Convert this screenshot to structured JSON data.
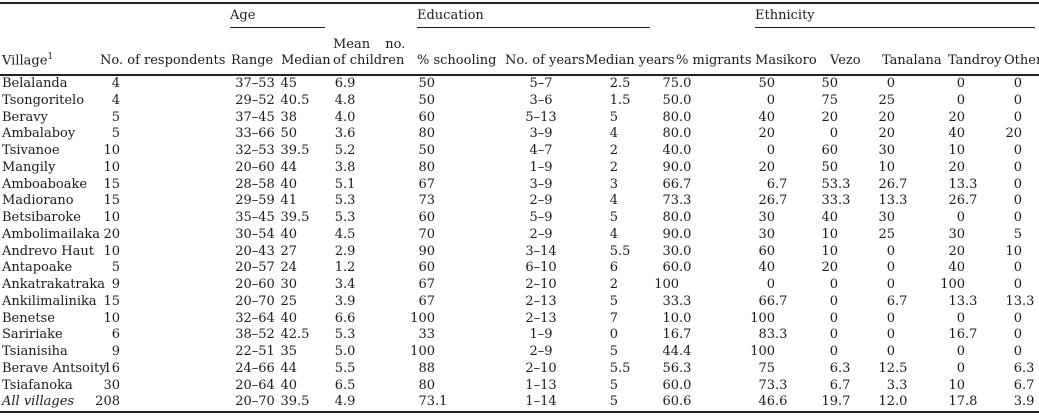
{
  "table": {
    "footnote_marker": "1",
    "group_headers": {
      "age": "Age",
      "education": "Education",
      "ethnicity": "Ethnicity"
    },
    "col_headers": {
      "village": "Village",
      "respondents": "No. of respondents",
      "range": "Range",
      "median": "Median",
      "mean_children_line1": "Mean no.",
      "mean_children_line2": "of children",
      "pct_schooling": "% schooling",
      "no_of_years": "No. of years",
      "median_years": "Median years",
      "pct_migrants": "% migrants",
      "masikoro": "Masikoro",
      "vezo": "Vezo",
      "tanalana": "Tanalana",
      "tandroy": "Tandroy",
      "other": "Other"
    },
    "rows": [
      [
        "Belalanda",
        "4",
        "37–53",
        "45",
        "6.9",
        "50",
        "5–7",
        "2.5",
        "75.0",
        "50",
        "50",
        "0",
        "0",
        "0"
      ],
      [
        "Tsongoritelo",
        "4",
        "29–52",
        "40.5",
        "4.8",
        "50",
        "3–6",
        "1.5",
        "50.0",
        "0",
        "75",
        "25",
        "0",
        "0"
      ],
      [
        "Beravy",
        "5",
        "37–45",
        "38",
        "4.0",
        "60",
        "5–13",
        "5",
        "80.0",
        "40",
        "20",
        "20",
        "20",
        "0"
      ],
      [
        "Ambalaboy",
        "5",
        "33–66",
        "50",
        "3.6",
        "80",
        "3–9",
        "4",
        "80.0",
        "20",
        "0",
        "20",
        "40",
        "20"
      ],
      [
        "Tsivanoe",
        "10",
        "32–53",
        "39.5",
        "5.2",
        "50",
        "4–7",
        "2",
        "40.0",
        "0",
        "60",
        "30",
        "10",
        "0"
      ],
      [
        "Mangily",
        "10",
        "20–60",
        "44",
        "3.8",
        "80",
        "1–9",
        "2",
        "90.0",
        "20",
        "50",
        "10",
        "20",
        "0"
      ],
      [
        "Amboaboake",
        "15",
        "28–58",
        "40",
        "5.1",
        "67",
        "3–9",
        "3",
        "66.7",
        "6.7",
        "53.3",
        "26.7",
        "13.3",
        "0"
      ],
      [
        "Madiorano",
        "15",
        "29–59",
        "41",
        "5.3",
        "73",
        "2–9",
        "4",
        "73.3",
        "26.7",
        "33.3",
        "13.3",
        "26.7",
        "0"
      ],
      [
        "Betsibaroke",
        "10",
        "35–45",
        "39.5",
        "5.3",
        "60",
        "5–9",
        "5",
        "80.0",
        "30",
        "40",
        "30",
        "0",
        "0"
      ],
      [
        "Ambolimailaka",
        "20",
        "30–54",
        "40",
        "4.5",
        "70",
        "2–9",
        "4",
        "90.0",
        "30",
        "10",
        "25",
        "30",
        "5"
      ],
      [
        "Andrevo Haut",
        "10",
        "20–43",
        "27",
        "2.9",
        "90",
        "3–14",
        "5.5",
        "30.0",
        "60",
        "10",
        "0",
        "20",
        "10"
      ],
      [
        "Antapoake",
        "5",
        "20–57",
        "24",
        "1.2",
        "60",
        "6–10",
        "6",
        "60.0",
        "40",
        "20",
        "0",
        "40",
        "0"
      ],
      [
        "Ankatrakatraka",
        "9",
        "20–60",
        "30",
        "3.4",
        "67",
        "2–10",
        "2",
        "100",
        "0",
        "0",
        "0",
        "100",
        "0"
      ],
      [
        "Ankilimalinika",
        "15",
        "20–70",
        "25",
        "3.9",
        "67",
        "2–13",
        "5",
        "33.3",
        "66.7",
        "0",
        "6.7",
        "13.3",
        "13.3"
      ],
      [
        "Benetse",
        "10",
        "32–64",
        "40",
        "6.6",
        "100",
        "2–13",
        "7",
        "10.0",
        "100",
        "0",
        "0",
        "0",
        "0"
      ],
      [
        "Saririake",
        "6",
        "38–52",
        "42.5",
        "5.3",
        "33",
        "1–9",
        "0",
        "16.7",
        "83.3",
        "0",
        "0",
        "16.7",
        "0"
      ],
      [
        "Tsianisiha",
        "9",
        "22–51",
        "35",
        "5.0",
        "100",
        "2–9",
        "5",
        "44.4",
        "100",
        "0",
        "0",
        "0",
        "0"
      ],
      [
        "Berave Antsoity",
        "16",
        "24–66",
        "44",
        "5.5",
        "88",
        "2–10",
        "5.5",
        "56.3",
        "75",
        "6.3",
        "12.5",
        "0",
        "6.3"
      ],
      [
        "Tsiafanoka",
        "30",
        "20–64",
        "40",
        "6.5",
        "80",
        "1–13",
        "5",
        "60.0",
        "73.3",
        "6.7",
        "3.3",
        "10",
        "6.7"
      ],
      [
        "All villages",
        "208",
        "20–70",
        "39.5",
        "4.9",
        "73.1",
        "1–14",
        "5",
        "60.6",
        "46.6",
        "19.7",
        "12.0",
        "17.8",
        "3.9"
      ]
    ]
  }
}
